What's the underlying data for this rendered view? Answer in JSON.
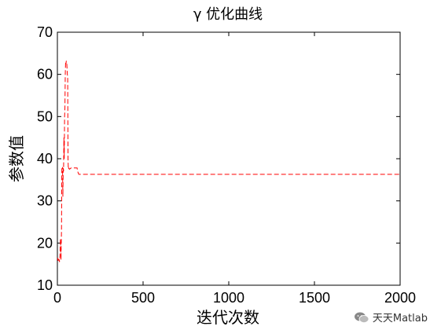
{
  "chart_data": {
    "type": "line",
    "title": "γ 优化曲线",
    "xlabel": "迭代次数",
    "ylabel": "参数值",
    "xlim": [
      0,
      2000
    ],
    "ylim": [
      10,
      70
    ],
    "xticks": [
      0,
      500,
      1000,
      1500,
      2000
    ],
    "yticks": [
      10,
      20,
      30,
      40,
      50,
      60,
      70
    ],
    "grid": false,
    "legend": "none",
    "series": [
      {
        "color": "#ff0000",
        "style": "dashed",
        "x": [
          1,
          4,
          8,
          12,
          15,
          18,
          21,
          24,
          26,
          28,
          30,
          32,
          34,
          36,
          38,
          40,
          42,
          44,
          46,
          48,
          50,
          52,
          55,
          58,
          60,
          62,
          64,
          66,
          70,
          80,
          100,
          115,
          118,
          125,
          150,
          200,
          400,
          800,
          1200,
          1600,
          2000
        ],
        "y": [
          16.5,
          15.8,
          16.5,
          15.5,
          17.0,
          21.0,
          16.0,
          23.0,
          38.0,
          37.5,
          38.0,
          31.0,
          38.0,
          37.0,
          45.0,
          40.0,
          50.0,
          52.0,
          60.0,
          63.0,
          62.5,
          63.2,
          62.5,
          60.0,
          59.5,
          40.0,
          37.5,
          37.8,
          37.5,
          37.8,
          37.8,
          37.8,
          37.0,
          36.3,
          36.3,
          36.3,
          36.3,
          36.3,
          36.3,
          36.3,
          36.3
        ]
      }
    ]
  },
  "watermark": {
    "text": "天天Matlab",
    "icon": "wechat-icon"
  }
}
